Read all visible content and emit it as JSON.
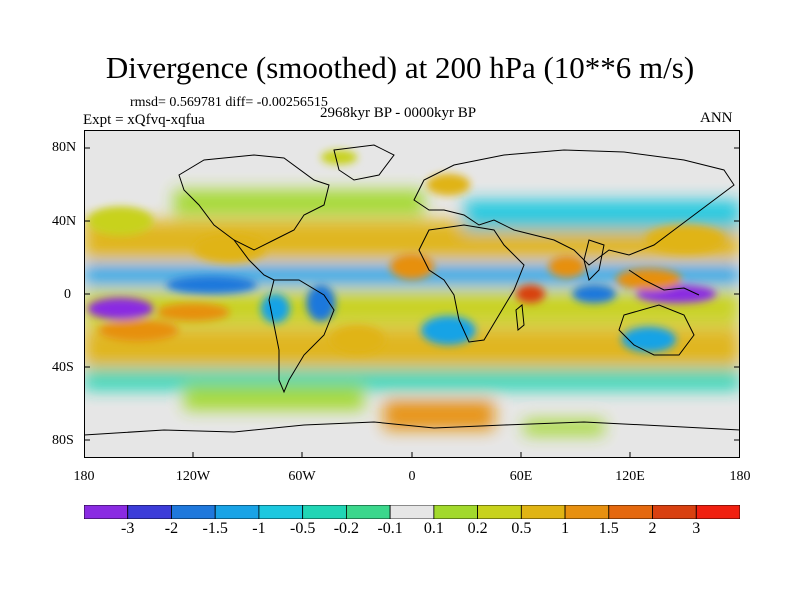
{
  "figure": {
    "title": "Divergence (smoothed) at 200 hPa (10**6 m/s)",
    "stats_text": "rmsd= 0.569781 diff= -0.00256515",
    "experiment_text": "Expt = xQfvq-xqfua",
    "period_text": "2968kyr BP - 0000kyr BP",
    "season_text": "ANN"
  },
  "map": {
    "lat_labels": [
      "80N",
      "40N",
      "0",
      "40S",
      "80S"
    ],
    "lon_labels": [
      "180",
      "120W",
      "60W",
      "0",
      "60E",
      "120E",
      "180"
    ],
    "land_color": "#e8e8e8",
    "coast_color": "#000000"
  },
  "colorbar": {
    "colors": [
      "#8a2be2",
      "#3c3cd8",
      "#1f78dc",
      "#19a3e6",
      "#1cc8df",
      "#21d5b5",
      "#3bd78c",
      "#e6e6e6",
      "#a2d92c",
      "#c8d21c",
      "#e0b414",
      "#e79010",
      "#e4680e",
      "#d84010",
      "#f02010"
    ],
    "labels": [
      "-3",
      "-2",
      "-1.5",
      "-1",
      "-0.5",
      "-0.2",
      "-0.1",
      "0.1",
      "0.2",
      "0.5",
      "1",
      "1.5",
      "2",
      "3"
    ]
  },
  "chart_data": {
    "type": "heatmap",
    "title": "Divergence (smoothed) at 200 hPa (10**6 m/s)",
    "units": "10**6 m/s",
    "x_range_lon": [
      -180,
      180
    ],
    "y_range_lat": [
      -90,
      90
    ],
    "levels": [
      -3,
      -2,
      -1.5,
      -1,
      -0.5,
      -0.2,
      -0.1,
      0.1,
      0.2,
      0.5,
      1,
      1.5,
      2,
      3
    ],
    "stats": {
      "rmsd": 0.569781,
      "diff": -0.00256515
    },
    "anomalies": [
      {
        "lon": -160,
        "lat": -8,
        "value": -3,
        "rx": 18,
        "ry": 6
      },
      {
        "lon": -150,
        "lat": -20,
        "value": 1.5,
        "rx": 22,
        "ry": 6
      },
      {
        "lon": -110,
        "lat": 5,
        "value": -1.5,
        "rx": 25,
        "ry": 5
      },
      {
        "lon": -120,
        "lat": -10,
        "value": 1.5,
        "rx": 20,
        "ry": 5
      },
      {
        "lon": -100,
        "lat": 25,
        "value": 1,
        "rx": 20,
        "ry": 8
      },
      {
        "lon": -75,
        "lat": -8,
        "value": -1,
        "rx": 8,
        "ry": 8
      },
      {
        "lon": -50,
        "lat": -5,
        "value": -1.5,
        "rx": 8,
        "ry": 10
      },
      {
        "lon": -30,
        "lat": -25,
        "value": 1,
        "rx": 15,
        "ry": 8
      },
      {
        "lon": 0,
        "lat": 15,
        "value": 1.5,
        "rx": 12,
        "ry": 7
      },
      {
        "lon": 20,
        "lat": -20,
        "value": -1,
        "rx": 15,
        "ry": 8
      },
      {
        "lon": 65,
        "lat": 0,
        "value": 3,
        "rx": 8,
        "ry": 5
      },
      {
        "lon": 85,
        "lat": 15,
        "value": 1.5,
        "rx": 10,
        "ry": 6
      },
      {
        "lon": 100,
        "lat": 0,
        "value": -1.5,
        "rx": 12,
        "ry": 5
      },
      {
        "lon": 145,
        "lat": 0,
        "value": -3,
        "rx": 22,
        "ry": 5
      },
      {
        "lon": 130,
        "lat": 8,
        "value": 1.5,
        "rx": 18,
        "ry": 6
      },
      {
        "lon": 130,
        "lat": -25,
        "value": -1,
        "rx": 15,
        "ry": 7
      },
      {
        "lon": 150,
        "lat": 30,
        "value": 1,
        "rx": 22,
        "ry": 8
      },
      {
        "lon": -40,
        "lat": 75,
        "value": 0.5,
        "rx": 10,
        "ry": 4
      },
      {
        "lon": 20,
        "lat": 60,
        "value": 1,
        "rx": 12,
        "ry": 6
      },
      {
        "lon": -160,
        "lat": 40,
        "value": 0.5,
        "rx": 18,
        "ry": 8
      }
    ]
  }
}
